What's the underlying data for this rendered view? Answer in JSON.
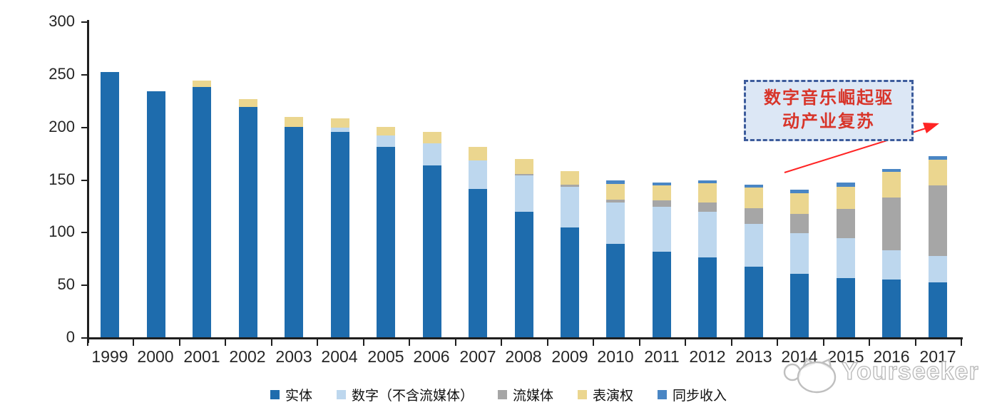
{
  "chart_data": {
    "type": "bar",
    "variant": "stacked",
    "title": "",
    "xlabel": "",
    "ylabel": "",
    "categories": [
      "1999",
      "2000",
      "2001",
      "2002",
      "2003",
      "2004",
      "2005",
      "2006",
      "2007",
      "2008",
      "2009",
      "2010",
      "2011",
      "2012",
      "2013",
      "2014",
      "2015",
      "2016",
      "2017"
    ],
    "series": [
      {
        "name": "实体",
        "color": "#1e6cad",
        "values": [
          252,
          234,
          238,
          219,
          200,
          195,
          181,
          163,
          141,
          119,
          104,
          89,
          81,
          76,
          67,
          60,
          56,
          55,
          52
        ]
      },
      {
        "name": "数字（不含流媒体）",
        "color": "#bdd7ee",
        "values": [
          0,
          0,
          0,
          0,
          0,
          4,
          11,
          21,
          27,
          35,
          39,
          39,
          43,
          43,
          41,
          39,
          38,
          28,
          25
        ]
      },
      {
        "name": "流媒体",
        "color": "#a6a6a6",
        "values": [
          0,
          0,
          0,
          0,
          0,
          0,
          0,
          0,
          0,
          1,
          2,
          3,
          6,
          9,
          15,
          18,
          28,
          50,
          67
        ]
      },
      {
        "name": "表演权",
        "color": "#ebd68f",
        "values": [
          0,
          0,
          6,
          7,
          9,
          9,
          8,
          11,
          13,
          14,
          13,
          15,
          14,
          18,
          19,
          20,
          21,
          24,
          25
        ]
      },
      {
        "name": "同步收入",
        "color": "#4a86c4",
        "values": [
          0,
          0,
          0,
          0,
          0,
          0,
          0,
          0,
          0,
          0,
          0,
          3,
          3,
          3,
          3,
          3,
          4,
          3,
          3
        ]
      }
    ],
    "ylim": [
      0,
      300
    ],
    "yticks": [
      0,
      50,
      100,
      150,
      200,
      250,
      300
    ],
    "grid": false,
    "legend_position": "bottom"
  },
  "annotation": {
    "line1": "数字音乐崛起驱",
    "line2": "动产业复苏",
    "text_color": "#d8352a",
    "border_color": "#3d5c9c",
    "fill_color": "#dce7f5",
    "arrow_color": "#ff2424"
  },
  "watermark": {
    "text": "Yourseeker",
    "logo": "cat-logo",
    "color": "#bdbdbd"
  }
}
